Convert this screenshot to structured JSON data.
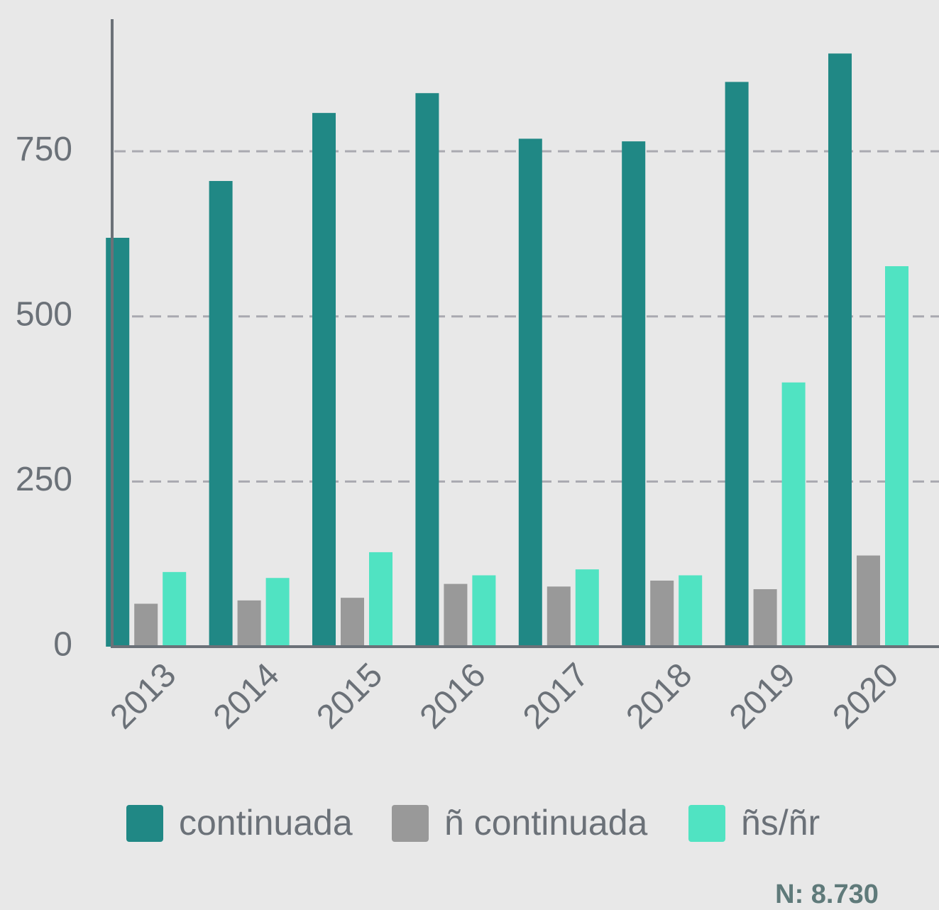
{
  "chart_data": {
    "type": "bar",
    "categories": [
      "2013",
      "2014",
      "2015",
      "2016",
      "2017",
      "2018",
      "2019",
      "2020"
    ],
    "series": [
      {
        "name": "continuada",
        "color": "#208885",
        "values": [
          619,
          705,
          808,
          838,
          769,
          765,
          855,
          898
        ]
      },
      {
        "name": "ñ continuada",
        "color": "#999999",
        "values": [
          65,
          70,
          74,
          95,
          91,
          100,
          87,
          138
        ]
      },
      {
        "name": "ñs/ñr",
        "color": "#50e3c2",
        "values": [
          113,
          104,
          143,
          108,
          117,
          108,
          400,
          576
        ]
      }
    ],
    "ylim": [
      0,
      950
    ],
    "yticks": [
      0,
      250,
      500,
      750
    ],
    "grid": true,
    "legend": "bottom",
    "annotation": "N: 8.730"
  }
}
